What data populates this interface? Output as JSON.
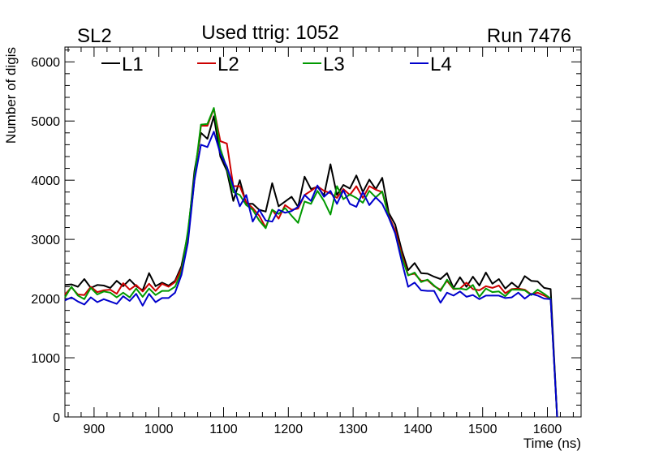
{
  "header": {
    "left_label": "SL2",
    "center_label": "Used ttrig: 1052",
    "right_label": "Run 7476"
  },
  "chart_data": {
    "type": "line",
    "title": "Used ttrig: 1052",
    "xlabel": "Time (ns)",
    "ylabel": "Number of digis",
    "xlim": [
      855,
      1652
    ],
    "ylim": [
      0,
      6250
    ],
    "x_ticks": [
      900,
      1000,
      1100,
      1200,
      1300,
      1400,
      1500,
      1600
    ],
    "y_ticks": [
      0,
      1000,
      2000,
      3000,
      4000,
      5000,
      6000
    ],
    "x_tick_labels": [
      "900",
      "1000",
      "1100",
      "1200",
      "1300",
      "1400",
      "1500",
      "1600"
    ],
    "y_tick_labels": [
      "0",
      "1000",
      "2000",
      "3000",
      "4000",
      "5000",
      "6000"
    ],
    "grid": false,
    "legend_position": "top",
    "bin_start": 855,
    "bin_width": 10,
    "series": [
      {
        "name": "L1",
        "color": "#000000",
        "values": [
          2230,
          2240,
          2200,
          2330,
          2180,
          2230,
          2220,
          2180,
          2300,
          2210,
          2320,
          2210,
          2140,
          2430,
          2210,
          2270,
          2220,
          2300,
          2550,
          3100,
          4150,
          4800,
          4700,
          5080,
          4400,
          4160,
          3650,
          4000,
          3600,
          3600,
          3500,
          3470,
          3950,
          3560,
          3640,
          3720,
          3550,
          4060,
          3850,
          3890,
          3740,
          4270,
          3750,
          3920,
          3860,
          4080,
          3800,
          4010,
          3850,
          4040,
          3450,
          3250,
          2820,
          2480,
          2600,
          2430,
          2420,
          2370,
          2330,
          2430,
          2180,
          2360,
          2200,
          2370,
          2220,
          2440,
          2250,
          2330,
          2170,
          2270,
          2180,
          2380,
          2300,
          2290,
          2180,
          2160,
          0
        ]
      },
      {
        "name": "L2",
        "color": "#cc0000",
        "values": [
          2070,
          2190,
          2070,
          2060,
          2200,
          2110,
          2140,
          2150,
          2080,
          2260,
          2150,
          2230,
          2120,
          2250,
          2130,
          2250,
          2200,
          2280,
          2500,
          3000,
          4000,
          4920,
          4920,
          5210,
          4660,
          4620,
          3900,
          3900,
          3630,
          3530,
          3400,
          3200,
          3500,
          3350,
          3580,
          3500,
          3520,
          3750,
          3820,
          3900,
          3820,
          3780,
          3700,
          3850,
          3750,
          3900,
          3700,
          3900,
          3840,
          3800,
          3400,
          3150,
          2750,
          2400,
          2420,
          2300,
          2310,
          2210,
          2150,
          2300,
          2160,
          2170,
          2270,
          2160,
          2140,
          2210,
          2180,
          2220,
          2090,
          2160,
          2170,
          2150,
          2070,
          2100,
          2050,
          2000,
          0
        ]
      },
      {
        "name": "L3",
        "color": "#009900",
        "values": [
          2020,
          2200,
          2050,
          1990,
          2180,
          2070,
          2120,
          2100,
          2020,
          2100,
          2020,
          2170,
          2030,
          2170,
          2060,
          2130,
          2130,
          2200,
          2450,
          3150,
          4060,
          4940,
          4950,
          5220,
          4530,
          4200,
          3800,
          3750,
          3580,
          3500,
          3320,
          3190,
          3500,
          3430,
          3530,
          3400,
          3280,
          3640,
          3600,
          3820,
          3650,
          3420,
          3900,
          3680,
          3760,
          3700,
          3620,
          3820,
          3710,
          3810,
          3380,
          3100,
          2700,
          2390,
          2440,
          2280,
          2320,
          2220,
          2130,
          2320,
          2170,
          2170,
          2150,
          2230,
          2030,
          2170,
          2110,
          2120,
          2040,
          2150,
          2150,
          2140,
          2060,
          2150,
          2080,
          2000,
          0
        ]
      },
      {
        "name": "L4",
        "color": "#0000cc",
        "values": [
          1970,
          2020,
          1950,
          1900,
          2020,
          1940,
          1990,
          1950,
          1910,
          2040,
          1960,
          2080,
          1880,
          2080,
          1940,
          2010,
          2010,
          2100,
          2400,
          2950,
          4000,
          4600,
          4560,
          4820,
          4450,
          4230,
          3900,
          3560,
          3750,
          3300,
          3500,
          3320,
          3300,
          3500,
          3450,
          3480,
          3550,
          3750,
          3650,
          3910,
          3720,
          3820,
          3600,
          3830,
          3600,
          3550,
          3800,
          3580,
          3710,
          3600,
          3370,
          3100,
          2630,
          2200,
          2270,
          2140,
          2130,
          2130,
          1930,
          2100,
          2050,
          2120,
          2030,
          2060,
          1990,
          2050,
          2050,
          2050,
          2010,
          2020,
          2100,
          2000,
          2080,
          2050,
          2000,
          1990,
          0
        ]
      }
    ]
  }
}
